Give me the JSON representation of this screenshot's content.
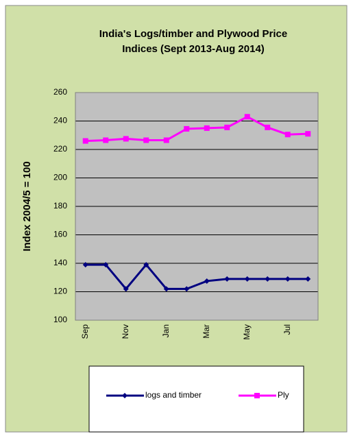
{
  "chart_data": {
    "type": "line",
    "title": [
      "India's Logs/timber and Plywood Price",
      "Indices (Sept 2013-Aug 2014)"
    ],
    "y_label": "Index 2004/5 = 100",
    "categories": [
      "Sep",
      null,
      "Nov",
      null,
      "Jan",
      null,
      "Mar",
      null,
      "May",
      null,
      "Jul",
      null
    ],
    "series": [
      {
        "name": "logs and timber",
        "color": "#000080",
        "marker": "diamond",
        "values": [
          139,
          139,
          122,
          139,
          122,
          122,
          127.5,
          129,
          129,
          129,
          129,
          129
        ]
      },
      {
        "name": "Ply",
        "color": "#ff00ff",
        "marker": "square",
        "values": [
          226,
          226.5,
          227.5,
          226.5,
          226.5,
          234.5,
          235,
          235.5,
          243,
          235.5,
          230.5,
          231
        ]
      }
    ],
    "ylim": [
      100,
      260
    ],
    "yticks": [
      100,
      120,
      140,
      160,
      180,
      200,
      220,
      240,
      260
    ],
    "grid": true
  }
}
